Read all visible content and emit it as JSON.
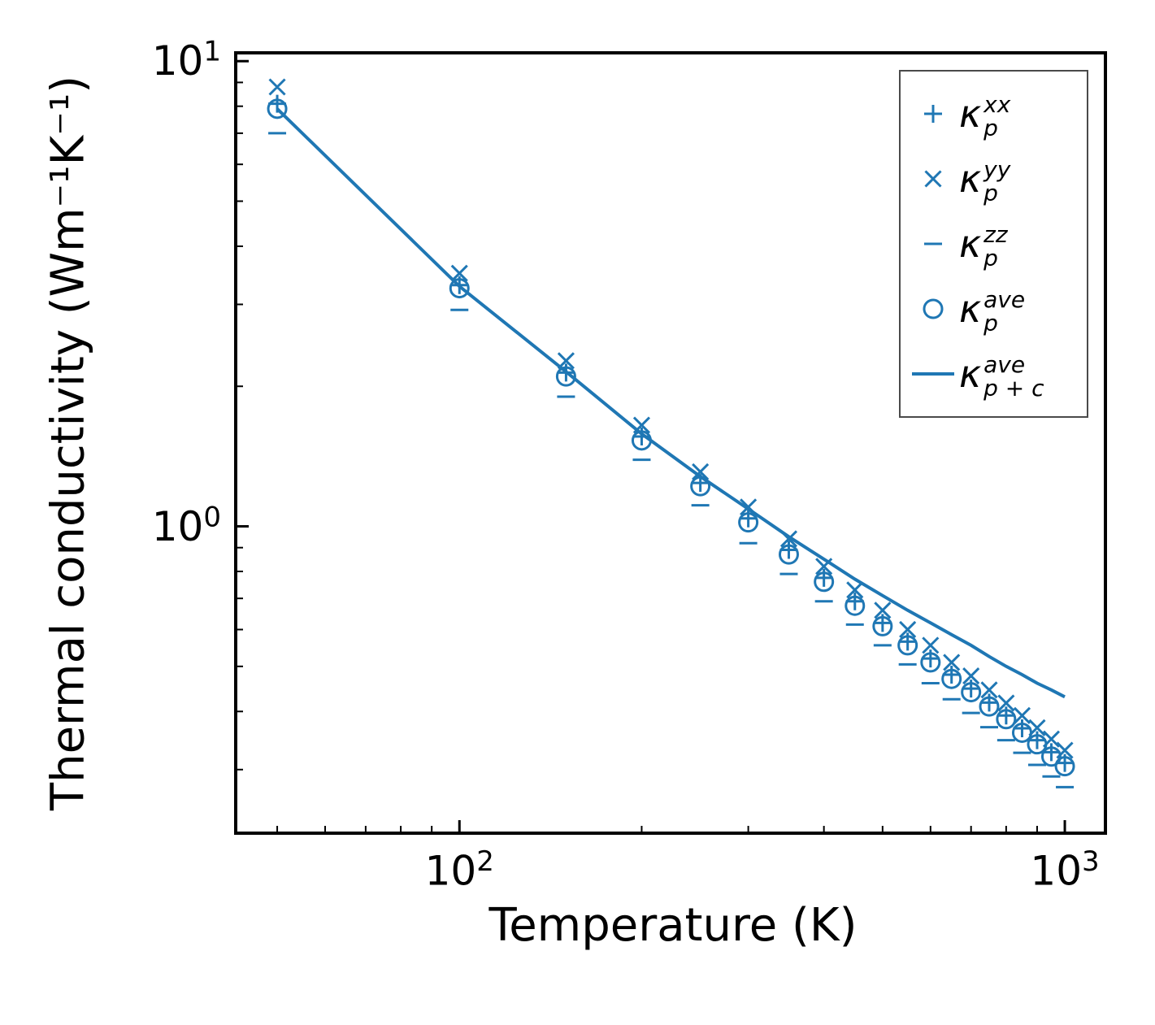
{
  "chart_data": {
    "type": "scatter",
    "title": "",
    "xlabel": "Temperature (K)",
    "ylabel": "Thermal conductivity (Wm⁻¹K⁻¹)",
    "x_scale": "log",
    "y_scale": "log",
    "x_range": [
      42.7,
      1167
    ],
    "y_range": [
      0.219,
      10.42
    ],
    "grid": false,
    "legend_position": "upper right",
    "color": "#1f77b4",
    "x_ticks": [
      {
        "value": 100,
        "base": "10",
        "exp": "2"
      },
      {
        "value": 1000,
        "base": "10",
        "exp": "3"
      }
    ],
    "y_ticks": [
      {
        "value": 10,
        "base": "10",
        "exp": "1"
      },
      {
        "value": 1,
        "base": "10",
        "exp": "0"
      }
    ],
    "temperatures": [
      50,
      100,
      150,
      200,
      250,
      300,
      350,
      400,
      450,
      500,
      550,
      600,
      650,
      700,
      750,
      800,
      850,
      900,
      950,
      1000
    ],
    "series": [
      {
        "name": "kappa-p-xx",
        "marker": "plus",
        "label": {
          "base": "κ",
          "sup": "xx",
          "sub": "p"
        },
        "values": [
          8.1,
          3.3,
          2.14,
          1.56,
          1.24,
          1.04,
          0.89,
          0.775,
          0.69,
          0.62,
          0.565,
          0.52,
          0.48,
          0.448,
          0.418,
          0.392,
          0.368,
          0.347,
          0.327,
          0.31
        ]
      },
      {
        "name": "kappa-p-yy",
        "marker": "x",
        "label": {
          "base": "κ",
          "sup": "yy",
          "sub": "p"
        },
        "values": [
          8.8,
          3.5,
          2.27,
          1.65,
          1.31,
          1.1,
          0.94,
          0.82,
          0.73,
          0.66,
          0.6,
          0.555,
          0.51,
          0.477,
          0.445,
          0.417,
          0.392,
          0.369,
          0.349,
          0.33
        ]
      },
      {
        "name": "kappa-p-zz",
        "marker": "hline",
        "label": {
          "base": "κ",
          "sup": "zz",
          "sub": "p"
        },
        "values": [
          7.0,
          2.92,
          1.9,
          1.39,
          1.11,
          0.92,
          0.79,
          0.69,
          0.615,
          0.555,
          0.505,
          0.46,
          0.425,
          0.397,
          0.37,
          0.347,
          0.326,
          0.307,
          0.29,
          0.275
        ]
      },
      {
        "name": "kappa-p-ave",
        "marker": "circle",
        "label": {
          "base": "κ",
          "sup": "ave",
          "sub": "p"
        },
        "values": [
          7.9,
          3.25,
          2.1,
          1.53,
          1.22,
          1.02,
          0.87,
          0.76,
          0.675,
          0.61,
          0.555,
          0.51,
          0.47,
          0.44,
          0.41,
          0.385,
          0.36,
          0.34,
          0.32,
          0.305
        ]
      },
      {
        "name": "kappa-p-plus-c-ave",
        "marker": "line",
        "label": {
          "base": "κ",
          "sup": "ave",
          "sub": "p + c"
        },
        "values": [
          7.9,
          3.28,
          2.15,
          1.58,
          1.28,
          1.09,
          0.95,
          0.85,
          0.77,
          0.71,
          0.66,
          0.62,
          0.585,
          0.555,
          0.525,
          0.5,
          0.48,
          0.46,
          0.445,
          0.43
        ]
      }
    ]
  }
}
